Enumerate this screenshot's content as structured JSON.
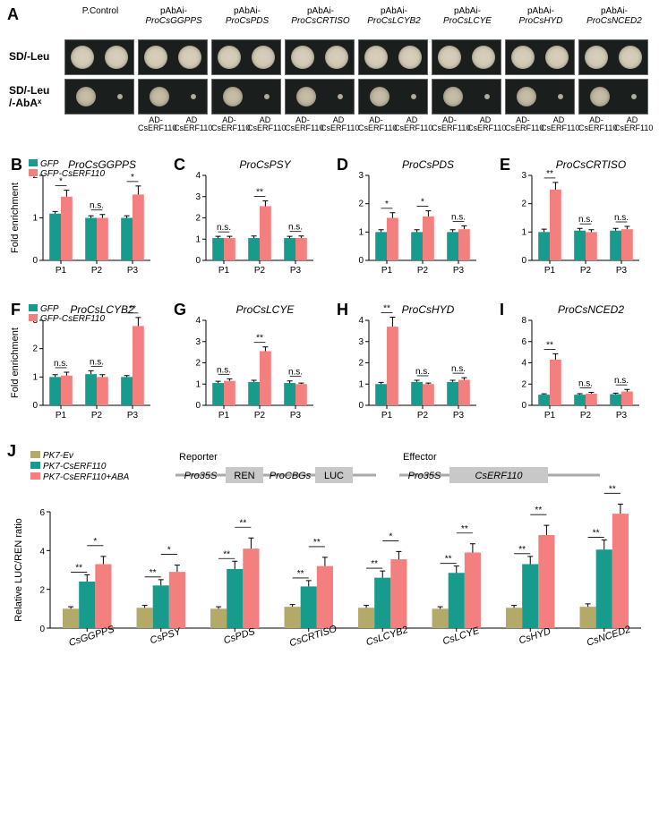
{
  "panelA": {
    "label": "A",
    "row_labels": [
      "SD/-Leu",
      "SD/-Leu\n/-AbAˣ"
    ],
    "columns": [
      {
        "header": "P.Control",
        "ad": [
          "",
          ""
        ]
      },
      {
        "header": "pAbAi-\nProCsGGPPS",
        "ad": [
          "AD-\nCsERF110",
          "AD\nCsERF110"
        ]
      },
      {
        "header": "pAbAi-\nProCsPDS",
        "ad": [
          "AD-\nCsERF110",
          "AD\nCsERF110"
        ]
      },
      {
        "header": "pAbAi-\nProCsCRTISO",
        "ad": [
          "AD-\nCsERF110",
          "AD\nCsERF110"
        ]
      },
      {
        "header": "pAbAi-\nProCsLCYB2",
        "ad": [
          "AD-\nCsERF110",
          "AD\nCsERF110"
        ]
      },
      {
        "header": "pAbAi-\nProCsLCYE",
        "ad": [
          "AD-\nCsERF110",
          "AD\nCsERF110"
        ]
      },
      {
        "header": "pAbAi-\nProCsHYD",
        "ad": [
          "AD-\nCsERF110",
          "AD\nCsERF110"
        ]
      },
      {
        "header": "pAbAi-\nProCsNCED2",
        "ad": [
          "AD-\nCsERF110",
          "AD\nCsERF110"
        ]
      }
    ]
  },
  "colors": {
    "gfp": "#169b8c",
    "gfp_erf": "#f37f7f",
    "pk7ev": "#b3a969",
    "pk7erf": "#169b8c",
    "pk7erf_aba": "#f37f7f",
    "bg": "#ffffff",
    "axis": "#000000"
  },
  "chip_legend": [
    "GFP",
    "GFP-CsERF110"
  ],
  "chip_ylabel": "Fold enrichment",
  "chip_charts": [
    {
      "id": "B",
      "title": "ProCsGGPPS",
      "ylim": [
        0,
        2
      ],
      "ytick": 1,
      "categories": [
        "P1",
        "P2",
        "P3"
      ],
      "gfp": [
        1.1,
        1.0,
        1.0
      ],
      "gfp_err": [
        0.05,
        0.05,
        0.05
      ],
      "erf": [
        1.5,
        1.0,
        1.55
      ],
      "erf_err": [
        0.15,
        0.08,
        0.2
      ],
      "sig": [
        "*",
        "n.s.",
        "*"
      ]
    },
    {
      "id": "C",
      "title": "ProCsPSY",
      "ylim": [
        0,
        4
      ],
      "ytick": 1,
      "categories": [
        "P1",
        "P2",
        "P3"
      ],
      "gfp": [
        1.05,
        1.05,
        1.05
      ],
      "gfp_err": [
        0.08,
        0.1,
        0.08
      ],
      "erf": [
        1.05,
        2.55,
        1.05
      ],
      "erf_err": [
        0.08,
        0.25,
        0.1
      ],
      "sig": [
        "n.s.",
        "**",
        "n.s."
      ]
    },
    {
      "id": "D",
      "title": "ProCsPDS",
      "ylim": [
        0,
        3
      ],
      "ytick": 1,
      "categories": [
        "P1",
        "P2",
        "P3"
      ],
      "gfp": [
        1.0,
        1.0,
        1.0
      ],
      "gfp_err": [
        0.08,
        0.08,
        0.08
      ],
      "erf": [
        1.5,
        1.55,
        1.1
      ],
      "erf_err": [
        0.18,
        0.2,
        0.12
      ],
      "sig": [
        "*",
        "*",
        "n.s."
      ]
    },
    {
      "id": "E",
      "title": "ProCsCRTISO",
      "ylim": [
        0,
        3
      ],
      "ytick": 1,
      "categories": [
        "P1",
        "P2",
        "P3"
      ],
      "gfp": [
        1.0,
        1.05,
        1.05
      ],
      "gfp_err": [
        0.1,
        0.08,
        0.08
      ],
      "erf": [
        2.5,
        1.0,
        1.1
      ],
      "erf_err": [
        0.25,
        0.08,
        0.1
      ],
      "sig": [
        "**",
        "n.s.",
        "n.s."
      ]
    },
    {
      "id": "F",
      "title": "ProCsLCYB2",
      "ylim": [
        0,
        3
      ],
      "ytick": 1,
      "categories": [
        "P1",
        "P2",
        "P3"
      ],
      "gfp": [
        1.0,
        1.1,
        1.0
      ],
      "gfp_err": [
        0.08,
        0.12,
        0.05
      ],
      "erf": [
        1.05,
        1.0,
        2.8
      ],
      "erf_err": [
        0.12,
        0.08,
        0.3
      ],
      "sig": [
        "n.s.",
        "n.s.",
        "**"
      ]
    },
    {
      "id": "G",
      "title": "ProCsLCYE",
      "ylim": [
        0,
        4
      ],
      "ytick": 1,
      "categories": [
        "P1",
        "P2",
        "P3"
      ],
      "gfp": [
        1.05,
        1.1,
        1.05
      ],
      "gfp_err": [
        0.08,
        0.08,
        0.1
      ],
      "erf": [
        1.15,
        2.55,
        1.0
      ],
      "erf_err": [
        0.1,
        0.2,
        0.05
      ],
      "sig": [
        "n.s.",
        "**",
        "n.s."
      ]
    },
    {
      "id": "H",
      "title": "ProCsHYD",
      "ylim": [
        0,
        4
      ],
      "ytick": 1,
      "categories": [
        "P1",
        "P2",
        "P3"
      ],
      "gfp": [
        1.0,
        1.1,
        1.1
      ],
      "gfp_err": [
        0.08,
        0.08,
        0.08
      ],
      "erf": [
        3.7,
        1.0,
        1.2
      ],
      "erf_err": [
        0.45,
        0.05,
        0.1
      ],
      "sig": [
        "**",
        "n.s.",
        "n.s."
      ]
    },
    {
      "id": "I",
      "title": "ProCsNCED2",
      "ylim": [
        0,
        8
      ],
      "ytick": 2,
      "categories": [
        "P1",
        "P2",
        "P3"
      ],
      "gfp": [
        1.0,
        1.0,
        1.05
      ],
      "gfp_err": [
        0.08,
        0.1,
        0.1
      ],
      "erf": [
        4.3,
        1.1,
        1.3
      ],
      "erf_err": [
        0.55,
        0.12,
        0.2
      ],
      "sig": [
        "**",
        "n.s.",
        "n.s."
      ]
    }
  ],
  "panelJ": {
    "label": "J",
    "ylabel": "Relative LUC/REN ratio",
    "ylim": [
      0,
      6
    ],
    "ytick": 2,
    "legend": [
      "PK7-Ev",
      "PK7-CsERF110",
      "PK7-CsERF110+ABA"
    ],
    "constructs": {
      "reporter_label": "Reporter",
      "effector_label": "Effector",
      "reporter": [
        {
          "type": "text",
          "txt": "Pro35S",
          "italic": true
        },
        {
          "type": "box",
          "txt": "REN"
        },
        {
          "type": "text",
          "txt": "ProCBGs",
          "italic": true
        },
        {
          "type": "box",
          "txt": "LUC"
        }
      ],
      "effector": [
        {
          "type": "text",
          "txt": "Pro35S",
          "italic": true
        },
        {
          "type": "long_box",
          "txt": "CsERF110",
          "italic": true
        }
      ]
    },
    "categories": [
      "CsGGPPS",
      "CsPSY",
      "CsPDS",
      "CsCRTISO",
      "CsLCYB2",
      "CsLCYE",
      "CsHYD",
      "CsNCED2"
    ],
    "ev": [
      1.0,
      1.05,
      1.0,
      1.1,
      1.05,
      1.0,
      1.05,
      1.1
    ],
    "ev_err": [
      0.1,
      0.12,
      0.1,
      0.12,
      0.12,
      0.1,
      0.12,
      0.15
    ],
    "erf": [
      2.4,
      2.2,
      3.05,
      2.15,
      2.6,
      2.85,
      3.3,
      4.05
    ],
    "erf_err": [
      0.35,
      0.3,
      0.4,
      0.3,
      0.35,
      0.35,
      0.4,
      0.5
    ],
    "aba": [
      3.3,
      2.9,
      4.1,
      3.2,
      3.55,
      3.9,
      4.8,
      5.9
    ],
    "aba_err": [
      0.4,
      0.35,
      0.55,
      0.45,
      0.4,
      0.45,
      0.5,
      0.5
    ],
    "sig_ev_erf": [
      "**",
      "**",
      "**",
      "**",
      "**",
      "**",
      "**",
      "**"
    ],
    "sig_erf_aba": [
      "*",
      "*",
      "**",
      "**",
      "*",
      "**",
      "**",
      "**"
    ]
  }
}
